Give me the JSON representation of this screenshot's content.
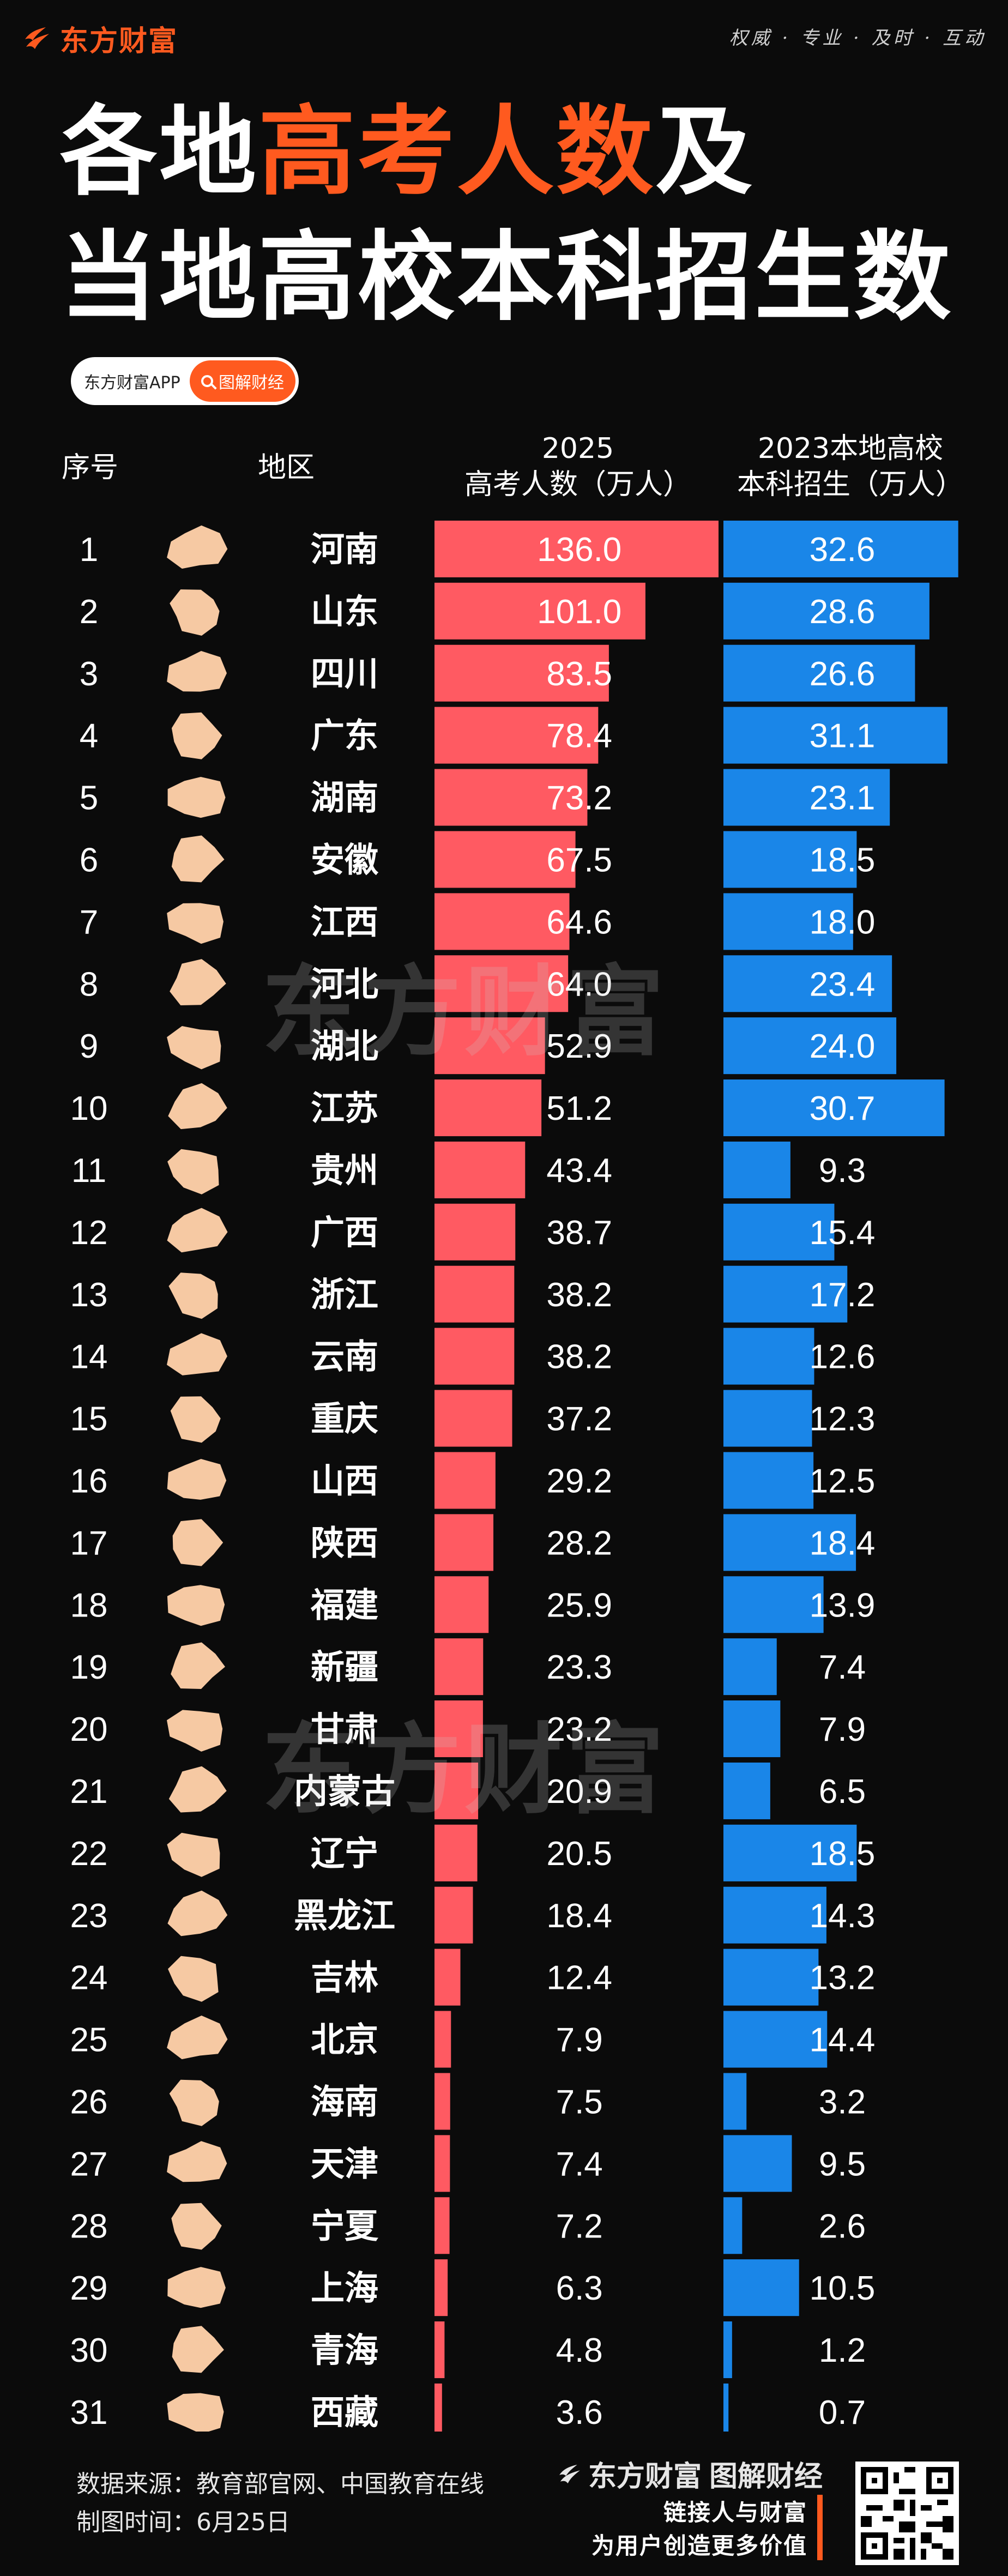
{
  "header": {
    "brand": "东方财富",
    "slogan": "权威 · 专业 · 及时 · 互动",
    "title_line1_part1": "各地",
    "title_line1_highlight": "高考人数",
    "title_line1_part2": "及",
    "title_line2": "当地高校本科招生数",
    "pill_left": "东方财富APP",
    "pill_right": "图解财经"
  },
  "columns": {
    "rank": "序号",
    "region": "地区",
    "exam_line1": "2025",
    "exam_line2": "高考人数（万人）",
    "enroll_line1": "2023本地高校",
    "enroll_line2": "本科招生（万人）"
  },
  "colors": {
    "exam_bar": "#ff5a62",
    "enroll_bar": "#1a86e8",
    "map_fill": "#f6c9a3",
    "accent": "#ff5a1f"
  },
  "chart_data": {
    "type": "bar",
    "categories": [
      "河南",
      "山东",
      "四川",
      "广东",
      "湖南",
      "安徽",
      "江西",
      "河北",
      "湖北",
      "江苏",
      "贵州",
      "广西",
      "浙江",
      "云南",
      "重庆",
      "山西",
      "陕西",
      "福建",
      "新疆",
      "甘肃",
      "内蒙古",
      "辽宁",
      "黑龙江",
      "吉林",
      "北京",
      "海南",
      "天津",
      "宁夏",
      "上海",
      "青海",
      "西藏"
    ],
    "ranks": [
      "1",
      "2",
      "3",
      "4",
      "5",
      "6",
      "7",
      "8",
      "9",
      "10",
      "11",
      "12",
      "13",
      "14",
      "15",
      "16",
      "17",
      "18",
      "19",
      "20",
      "21",
      "22",
      "23",
      "24",
      "25",
      "26",
      "27",
      "28",
      "29",
      "30",
      "31"
    ],
    "series": [
      {
        "name": "2025高考人数（万人）",
        "values": [
          136.0,
          101.0,
          83.5,
          78.4,
          73.2,
          67.5,
          64.6,
          64.0,
          52.9,
          51.2,
          43.4,
          38.7,
          38.2,
          38.2,
          37.2,
          29.2,
          28.2,
          25.9,
          23.3,
          23.2,
          20.9,
          20.5,
          18.4,
          12.4,
          7.9,
          7.5,
          7.4,
          7.2,
          6.3,
          4.8,
          3.6
        ]
      },
      {
        "name": "2023本地高校本科招生（万人）",
        "values": [
          32.6,
          28.6,
          26.6,
          31.1,
          23.1,
          18.5,
          18.0,
          23.4,
          24.0,
          30.7,
          9.3,
          15.4,
          17.2,
          12.6,
          12.3,
          12.5,
          18.4,
          13.9,
          7.4,
          7.9,
          6.5,
          18.5,
          14.3,
          13.2,
          14.4,
          3.2,
          9.5,
          2.6,
          10.5,
          1.2,
          0.7
        ]
      }
    ],
    "xlim_exam": [
      0,
      136
    ],
    "xlim_enroll": [
      0,
      33
    ],
    "decimals": 1
  },
  "watermark": "东方财富",
  "footer": {
    "source": "数据来源：教育部官网、中国教育在线",
    "date": "制图时间：6月25日",
    "brand_left": "东方财富",
    "brand_right": "图解财经",
    "tagline1": "链接人与财富",
    "tagline2": "为用户创造更多价值"
  }
}
